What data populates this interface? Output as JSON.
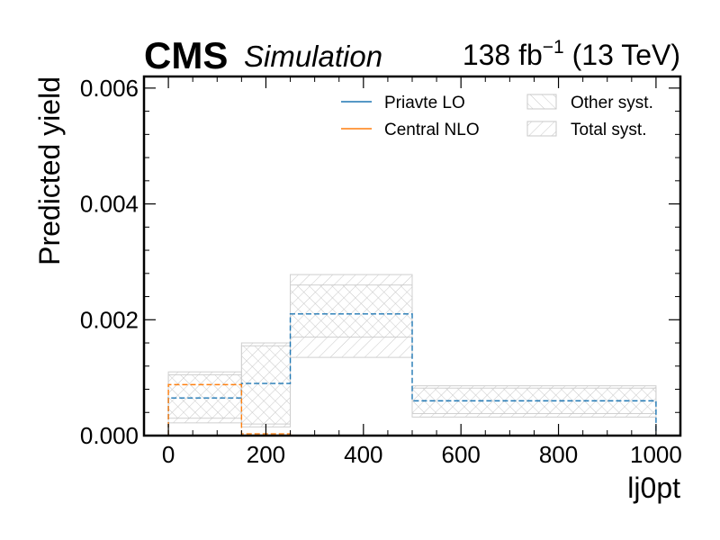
{
  "header": {
    "experiment": "CMS",
    "label": "Simulation",
    "lumi_value": "138 fb",
    "lumi_exp": "−1",
    "lumi_energy": " (13 TeV)"
  },
  "chart_data": {
    "type": "histogram",
    "xlabel": "lj0pt",
    "ylabel": "Predicted yield",
    "xlim": [
      -50,
      1050
    ],
    "ylim": [
      0,
      0.0062
    ],
    "xticks": [
      0,
      200,
      400,
      600,
      800,
      1000
    ],
    "xtick_labels": [
      "0",
      "200",
      "400",
      "600",
      "800",
      "1000"
    ],
    "yticks": [
      0,
      0.002,
      0.004,
      0.006
    ],
    "ytick_labels": [
      "0.000",
      "0.002",
      "0.004",
      "0.006"
    ],
    "bin_edges": [
      0,
      150,
      250,
      500,
      1000
    ],
    "series": [
      {
        "name": "Priavte LO",
        "color": "#1f77b4",
        "style": "dashed",
        "values": [
          0.00065,
          0.0009,
          0.0021,
          0.0006
        ]
      },
      {
        "name": "Central NLO",
        "color": "#ff7f0e",
        "style": "dashed",
        "values": [
          0.00088,
          3e-05,
          0.0,
          0.0
        ]
      }
    ],
    "bands": [
      {
        "name": "Other syst.",
        "hatch": "forward-diagonal",
        "low": [
          0.0003,
          0.0002,
          0.0017,
          0.00038
        ],
        "high": [
          0.00105,
          0.00155,
          0.0026,
          0.00082
        ]
      },
      {
        "name": "Total syst.",
        "hatch": "backward-diagonal",
        "low": [
          0.00022,
          0.00015,
          0.00135,
          0.00032
        ],
        "high": [
          0.0011,
          0.0016,
          0.00278,
          0.00086
        ]
      }
    ],
    "legend_placement": "top-right",
    "grid": false
  }
}
